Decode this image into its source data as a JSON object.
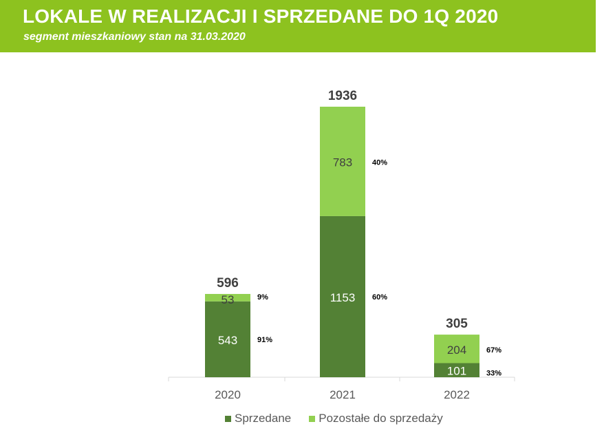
{
  "header": {
    "title": "LOKALE W REALIZACJI I SPRZEDANE DO 1Q 2020",
    "subtitle": "segment mieszkaniowy stan na 31.03.2020"
  },
  "colors": {
    "header_bg": "#8dc21f",
    "sold": "#538135",
    "remaining": "#92d050",
    "total_label": "#404040",
    "axis_label": "#595959"
  },
  "chart_data": {
    "type": "bar",
    "stacked": true,
    "categories": [
      "2020",
      "2021",
      "2022"
    ],
    "series": [
      {
        "name": "Sprzedane",
        "values": [
          543,
          1153,
          101
        ],
        "percent_labels": [
          "91%",
          "60%",
          "33%"
        ]
      },
      {
        "name": "Pozostałe do sprzedaży",
        "values": [
          53,
          783,
          204
        ],
        "percent_labels": [
          "9%",
          "40%",
          "67%"
        ]
      }
    ],
    "totals": [
      596,
      1936,
      305
    ],
    "ylim": [
      0,
      1936
    ],
    "grid": false,
    "legend": "bottom"
  }
}
